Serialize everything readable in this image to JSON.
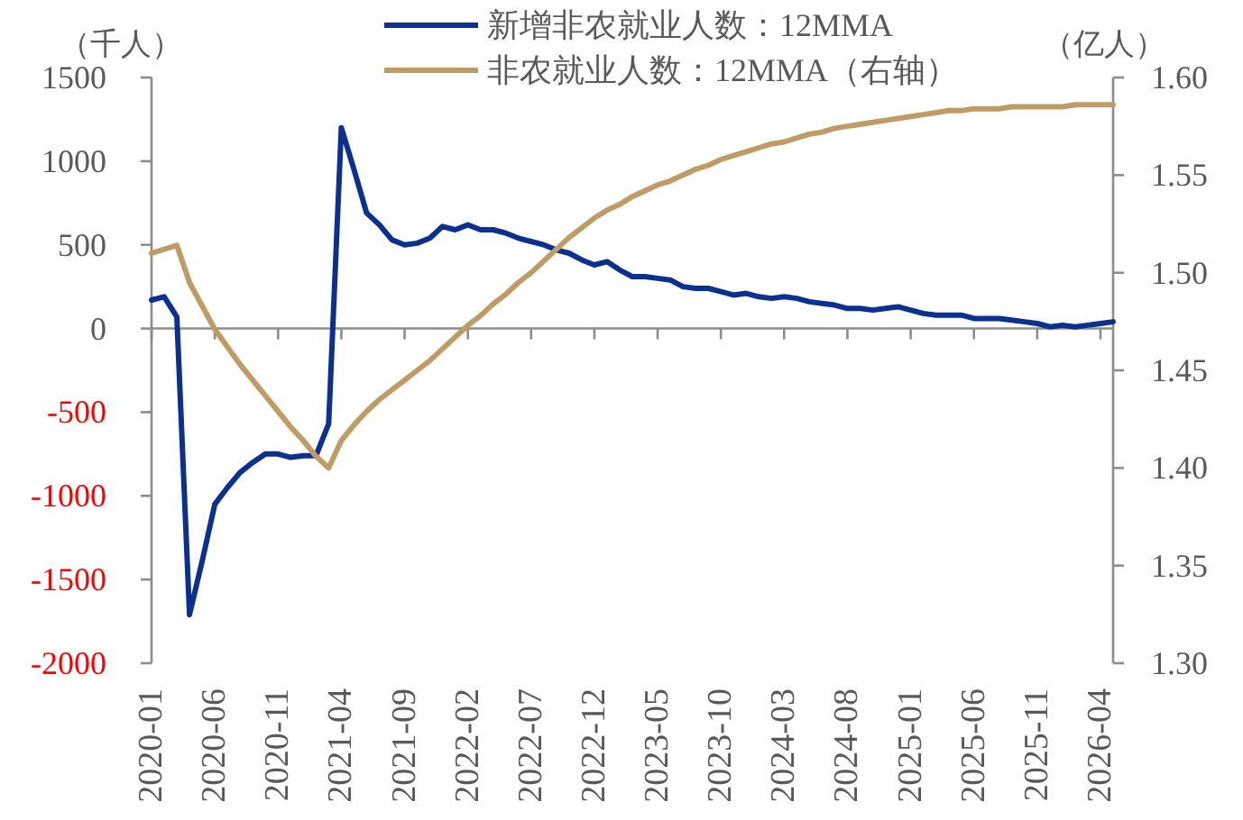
{
  "chart_data": {
    "type": "line",
    "ylabel": "（千人）",
    "y2label": "（亿人）",
    "legend": "top",
    "x": [
      "2020-01",
      "2020-02",
      "2020-03",
      "2020-04",
      "2020-05",
      "2020-06",
      "2020-07",
      "2020-08",
      "2020-09",
      "2020-10",
      "2020-11",
      "2020-12",
      "2021-01",
      "2021-02",
      "2021-03",
      "2021-04",
      "2021-05",
      "2021-06",
      "2021-07",
      "2021-08",
      "2021-09",
      "2021-10",
      "2021-11",
      "2021-12",
      "2022-01",
      "2022-02",
      "2022-03",
      "2022-04",
      "2022-05",
      "2022-06",
      "2022-07",
      "2022-08",
      "2022-09",
      "2022-10",
      "2022-11",
      "2022-12",
      "2023-01",
      "2023-02",
      "2023-03",
      "2023-04",
      "2023-05",
      "2023-06",
      "2023-07",
      "2023-08",
      "2023-09",
      "2023-10",
      "2023-11",
      "2023-12",
      "2024-01",
      "2024-02",
      "2024-03",
      "2024-04",
      "2024-05",
      "2024-06",
      "2024-07",
      "2024-08",
      "2024-09",
      "2024-10",
      "2024-11",
      "2024-12",
      "2025-01",
      "2025-02",
      "2025-03",
      "2025-04",
      "2025-05",
      "2025-06",
      "2025-07",
      "2025-08",
      "2025-09",
      "2025-10",
      "2025-11",
      "2025-12",
      "2026-01",
      "2026-02",
      "2026-03",
      "2026-04",
      "2026-05"
    ],
    "xlim": [
      "2020-01",
      "2026-05"
    ],
    "xticks": [
      "2020-01",
      "2020-06",
      "2020-11",
      "2021-04",
      "2021-09",
      "2022-02",
      "2022-07",
      "2022-12",
      "2023-05",
      "2023-10",
      "2024-03",
      "2024-08",
      "2025-01",
      "2025-06",
      "2025-11",
      "2026-04"
    ],
    "ylim": [
      -2000,
      1500
    ],
    "yticks": [
      1500,
      1000,
      500,
      0,
      -500,
      -1000,
      -1500,
      -2000
    ],
    "y2lim": [
      1.3,
      1.6
    ],
    "y2ticks": [
      {
        "value": 1.6,
        "label": "1.60"
      },
      {
        "value": 1.55,
        "label": "1.55"
      },
      {
        "value": 1.5,
        "label": "1.50"
      },
      {
        "value": 1.45,
        "label": "1.45"
      },
      {
        "value": 1.4,
        "label": "1.40"
      },
      {
        "value": 1.35,
        "label": "1.35"
      },
      {
        "value": 1.3,
        "label": "1.30"
      }
    ],
    "series": [
      {
        "name": "新增非农就业人数：12MMA",
        "color": "#0b3090",
        "values": [
          170,
          190,
          70,
          -1710,
          -1390,
          -1050,
          -950,
          -860,
          -800,
          -750,
          -750,
          -770,
          -760,
          -760,
          -570,
          1200,
          950,
          690,
          620,
          530,
          500,
          510,
          540,
          610,
          590,
          620,
          590,
          590,
          570,
          540,
          520,
          500,
          470,
          450,
          410,
          380,
          400,
          350,
          310,
          310,
          300,
          290,
          250,
          240,
          240,
          220,
          200,
          210,
          190,
          180,
          190,
          180,
          160,
          150,
          140,
          120,
          120,
          110,
          120,
          130,
          110,
          90,
          80,
          80,
          80,
          60,
          60,
          60,
          50,
          40,
          30,
          10,
          20,
          10,
          20,
          30,
          40
        ]
      },
      {
        "name": "非农就业人数：12MMA（右轴）",
        "color": "#bf9c66",
        "axis": "y2",
        "values": [
          1.51,
          1.512,
          1.514,
          1.495,
          1.483,
          1.471,
          1.462,
          1.453,
          1.445,
          1.437,
          1.429,
          1.421,
          1.414,
          1.406,
          1.4,
          1.414,
          1.422,
          1.429,
          1.435,
          1.44,
          1.445,
          1.45,
          1.455,
          1.461,
          1.467,
          1.473,
          1.478,
          1.484,
          1.489,
          1.495,
          1.5,
          1.506,
          1.512,
          1.518,
          1.523,
          1.528,
          1.532,
          1.535,
          1.539,
          1.542,
          1.545,
          1.547,
          1.55,
          1.553,
          1.555,
          1.558,
          1.56,
          1.562,
          1.564,
          1.566,
          1.567,
          1.569,
          1.571,
          1.572,
          1.574,
          1.575,
          1.576,
          1.577,
          1.578,
          1.579,
          1.58,
          1.581,
          1.582,
          1.583,
          1.583,
          1.584,
          1.584,
          1.584,
          1.585,
          1.585,
          1.585,
          1.585,
          1.585,
          1.586,
          1.586,
          1.586,
          1.586
        ]
      }
    ]
  }
}
